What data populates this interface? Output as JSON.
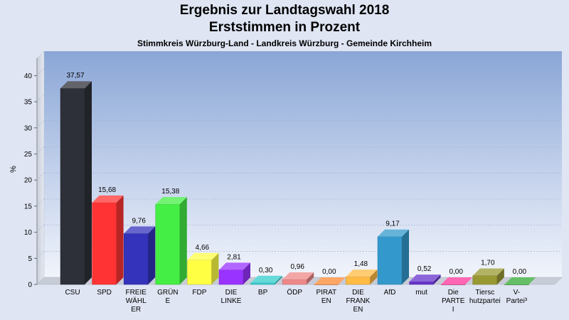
{
  "title": "Ergebnis zur Landtagswahl 2018",
  "subtitle": "Erststimmen in Prozent",
  "subsubtitle": "Stimmkreis Würzburg-Land - Landkreis Würzburg - Gemeinde Kirchheim",
  "chart_data": {
    "type": "bar",
    "title": "Ergebnis zur Landtagswahl 2018",
    "subtitle": "Erststimmen in Prozent",
    "xlabel": "",
    "ylabel": "%",
    "ylim": [
      0,
      43
    ],
    "yticks": [
      0,
      5,
      10,
      15,
      20,
      25,
      30,
      35,
      40
    ],
    "grid": true,
    "legend": "none",
    "bars": [
      {
        "label_lines": [
          "CSU"
        ],
        "value": 37.57,
        "value_label": "37,57",
        "color": "#2d3038"
      },
      {
        "label_lines": [
          "SPD"
        ],
        "value": 15.68,
        "value_label": "15,68",
        "color": "#ff3333"
      },
      {
        "label_lines": [
          "FREIE",
          "WÄHL",
          "ER"
        ],
        "value": 9.76,
        "value_label": "9,76",
        "color": "#3333bb"
      },
      {
        "label_lines": [
          "GRÜN",
          "E"
        ],
        "value": 15.38,
        "value_label": "15,38",
        "color": "#44ee44"
      },
      {
        "label_lines": [
          "FDP"
        ],
        "value": 4.66,
        "value_label": "4,66",
        "color": "#ffff44"
      },
      {
        "label_lines": [
          "DIE",
          "LINKE"
        ],
        "value": 2.81,
        "value_label": "2,81",
        "color": "#9933ff"
      },
      {
        "label_lines": [
          "BP"
        ],
        "value": 0.3,
        "value_label": "0,30",
        "color": "#33cccc"
      },
      {
        "label_lines": [
          "ÖDP"
        ],
        "value": 0.96,
        "value_label": "0,96",
        "color": "#ee8888"
      },
      {
        "label_lines": [
          "PIRAT",
          "EN"
        ],
        "value": 0.0,
        "value_label": "0,00",
        "color": "#ff8833"
      },
      {
        "label_lines": [
          "DIE",
          "FRANK",
          "EN"
        ],
        "value": 1.48,
        "value_label": "1,48",
        "color": "#ffbb44"
      },
      {
        "label_lines": [
          "AfD"
        ],
        "value": 9.17,
        "value_label": "9,17",
        "color": "#3399cc"
      },
      {
        "label_lines": [
          "mut"
        ],
        "value": 0.52,
        "value_label": "0,52",
        "color": "#6633cc"
      },
      {
        "label_lines": [
          "Die",
          "PARTE",
          "I"
        ],
        "value": 0.0,
        "value_label": "0,00",
        "color": "#ff3399"
      },
      {
        "label_lines": [
          "Tiersc",
          "hutzpartei"
        ],
        "value": 1.7,
        "value_label": "1,70",
        "color": "#999933"
      },
      {
        "label_lines": [
          "V-",
          "Partei³"
        ],
        "value": 0.0,
        "value_label": "0,00",
        "color": "#33aa33"
      }
    ]
  }
}
